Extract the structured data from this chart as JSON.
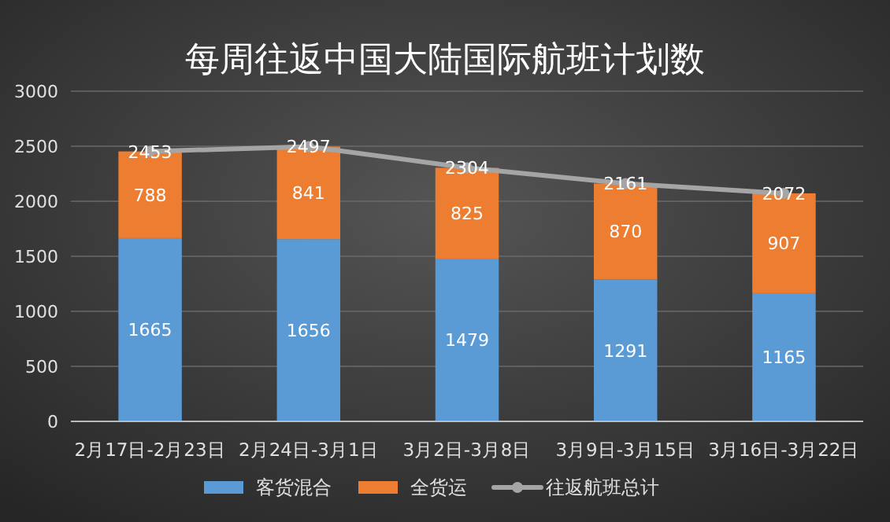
{
  "chart_data": {
    "type": "bar",
    "title": "每周往返中国大陆国际航班计划数",
    "stacked": true,
    "categories": [
      "2月17日-2月23日",
      "2月24日-3月1日",
      "3月2日-3月8日",
      "3月9日-3月15日",
      "3月16日-3月22日"
    ],
    "series": [
      {
        "name": "客货混合",
        "color": "#5b9bd5",
        "values": [
          1665,
          1656,
          1479,
          1291,
          1165
        ]
      },
      {
        "name": "全货运",
        "color": "#ed7d31",
        "values": [
          788,
          841,
          825,
          870,
          907
        ]
      },
      {
        "name": "往返航班总计",
        "type": "line",
        "color": "#a5a5a5",
        "marker": "circle",
        "values": [
          2453,
          2497,
          2304,
          2161,
          2072
        ]
      }
    ],
    "ylim": [
      0,
      3000
    ],
    "yticks": [
      0,
      500,
      1000,
      1500,
      2000,
      2500,
      3000
    ],
    "grid": "y",
    "data_labels": true,
    "legend": "bottom"
  }
}
